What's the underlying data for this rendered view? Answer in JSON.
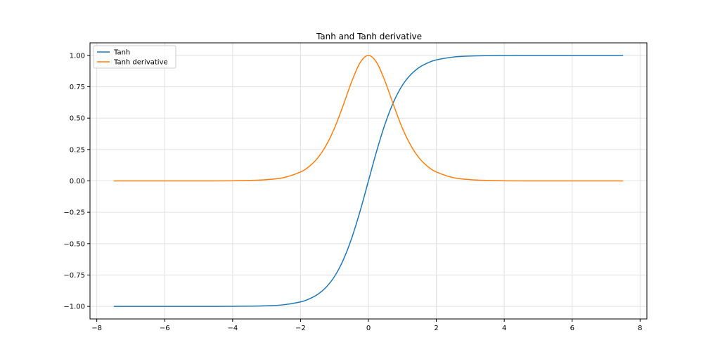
{
  "chart_data": {
    "type": "line",
    "title": "Tanh and Tanh derivative",
    "xlabel": "",
    "ylabel": "",
    "xlim": [
      -8.2,
      8.2
    ],
    "ylim": [
      -1.1,
      1.1
    ],
    "x_range": [
      -7.5,
      7.5
    ],
    "x_ticks": [
      -8,
      -6,
      -4,
      -2,
      0,
      2,
      4,
      6,
      8
    ],
    "x_tick_labels": [
      "−8",
      "−6",
      "−4",
      "−2",
      "0",
      "2",
      "4",
      "6",
      "8"
    ],
    "y_ticks": [
      -1.0,
      -0.75,
      -0.5,
      -0.25,
      0.0,
      0.25,
      0.5,
      0.75,
      1.0
    ],
    "y_tick_labels": [
      "−1.00",
      "−0.75",
      "−0.50",
      "−0.25",
      "0.00",
      "0.25",
      "0.50",
      "0.75",
      "1.00"
    ],
    "grid": true,
    "legend_position": "top-left",
    "series": [
      {
        "name": "Tanh",
        "color": "#1f77b4",
        "x": [
          -7.5,
          -7.0,
          -6.5,
          -6.0,
          -5.5,
          -5.0,
          -4.5,
          -4.0,
          -3.5,
          -3.0,
          -2.5,
          -2.0,
          -1.75,
          -1.5,
          -1.25,
          -1.0,
          -0.75,
          -0.5,
          -0.25,
          0.0,
          0.25,
          0.5,
          0.75,
          1.0,
          1.25,
          1.5,
          1.75,
          2.0,
          2.5,
          3.0,
          3.5,
          4.0,
          4.5,
          5.0,
          5.5,
          6.0,
          6.5,
          7.0,
          7.5
        ],
        "values": [
          -1.0,
          -1.0,
          -1.0,
          -1.0,
          -1.0,
          -1.0,
          -1.0,
          -0.999,
          -0.998,
          -0.995,
          -0.987,
          -0.964,
          -0.941,
          -0.905,
          -0.848,
          -0.762,
          -0.635,
          -0.462,
          -0.245,
          0.0,
          0.245,
          0.462,
          0.635,
          0.762,
          0.848,
          0.905,
          0.941,
          0.964,
          0.987,
          0.995,
          0.998,
          0.999,
          1.0,
          1.0,
          1.0,
          1.0,
          1.0,
          1.0,
          1.0
        ]
      },
      {
        "name": "Tanh derivative",
        "color": "#ff7f0e",
        "x": [
          -7.5,
          -7.0,
          -6.5,
          -6.0,
          -5.5,
          -5.0,
          -4.5,
          -4.0,
          -3.5,
          -3.0,
          -2.5,
          -2.0,
          -1.75,
          -1.5,
          -1.25,
          -1.0,
          -0.75,
          -0.5,
          -0.25,
          0.0,
          0.25,
          0.5,
          0.75,
          1.0,
          1.25,
          1.5,
          1.75,
          2.0,
          2.5,
          3.0,
          3.5,
          4.0,
          4.5,
          5.0,
          5.5,
          6.0,
          6.5,
          7.0,
          7.5
        ],
        "values": [
          0.0,
          0.0,
          0.0,
          0.0,
          0.0,
          0.0,
          0.0,
          0.001,
          0.004,
          0.01,
          0.026,
          0.071,
          0.114,
          0.181,
          0.281,
          0.42,
          0.597,
          0.786,
          0.94,
          1.0,
          0.94,
          0.786,
          0.597,
          0.42,
          0.281,
          0.181,
          0.114,
          0.071,
          0.026,
          0.01,
          0.004,
          0.001,
          0.0,
          0.0,
          0.0,
          0.0,
          0.0,
          0.0,
          0.0
        ]
      }
    ]
  }
}
